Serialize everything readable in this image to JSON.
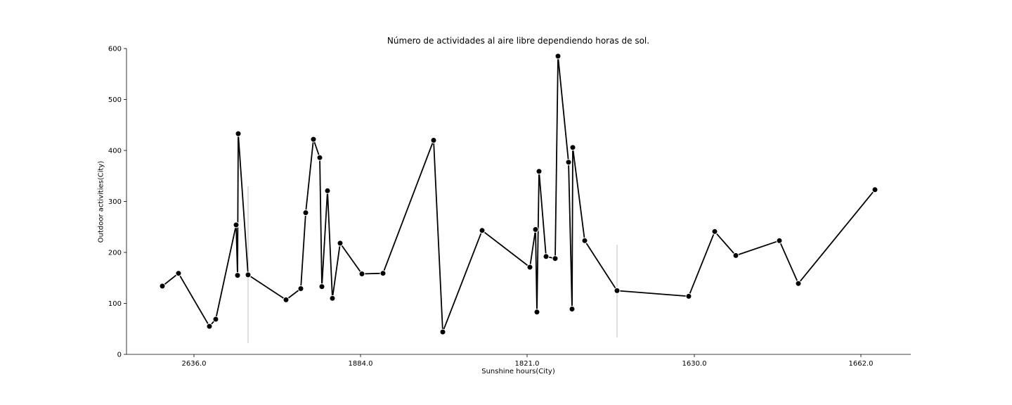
{
  "chart_data": {
    "type": "line",
    "title": "Número de actividades al aire libre dependiendo horas de sol.",
    "xlabel": "Sunshine hours(City)",
    "ylabel": "Outdoor activities(City)",
    "x_tick_labels": [
      "2636.0",
      "1884.0",
      "1821.0",
      "1630.0",
      "1662.0"
    ],
    "ylim": [
      0,
      600
    ],
    "yticks": [
      0,
      100,
      200,
      300,
      400,
      500,
      600
    ],
    "grid": false,
    "series": [
      {
        "values": [
          134,
          159,
          55,
          69,
          254,
          155,
          433,
          156,
          107,
          129,
          278,
          422,
          386,
          133,
          321,
          110,
          218,
          158,
          159,
          420,
          44,
          243,
          171,
          245,
          83,
          359,
          192,
          188,
          585,
          377,
          89,
          406,
          223,
          125,
          114,
          241,
          194,
          223,
          139,
          323
        ]
      }
    ]
  }
}
